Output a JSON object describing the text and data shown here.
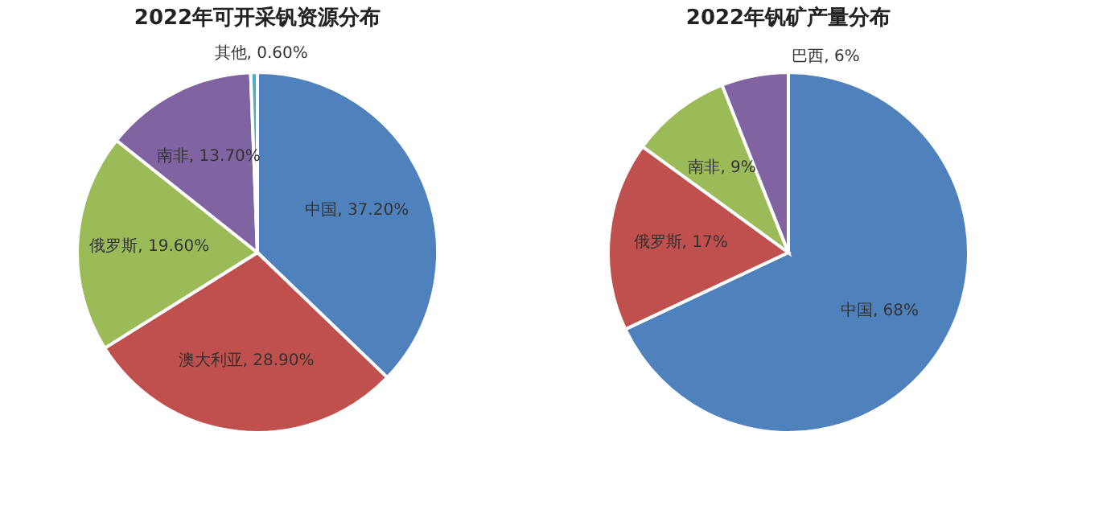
{
  "chart_data": [
    {
      "type": "pie",
      "title": "2022年可开采钒资源分布",
      "categories": [
        "中国",
        "澳大利亚",
        "俄罗斯",
        "南非",
        "其他"
      ],
      "values": [
        37.2,
        28.9,
        19.6,
        13.7,
        0.6
      ],
      "value_labels": [
        "37.20%",
        "28.90%",
        "19.60%",
        "13.70%",
        "0.60%"
      ],
      "colors": [
        "#4f81bd",
        "#c0504d",
        "#9bbb59",
        "#8064a2",
        "#4bacc6"
      ],
      "legend": false
    },
    {
      "type": "pie",
      "title": "2022年钒矿产量分布",
      "categories": [
        "中国",
        "俄罗斯",
        "南非",
        "巴西"
      ],
      "values": [
        68,
        17,
        9,
        6
      ],
      "value_labels": [
        "68%",
        "17%",
        "9%",
        "6%"
      ],
      "colors": [
        "#4f81bd",
        "#c0504d",
        "#9bbb59",
        "#8064a2"
      ],
      "legend": false
    }
  ]
}
